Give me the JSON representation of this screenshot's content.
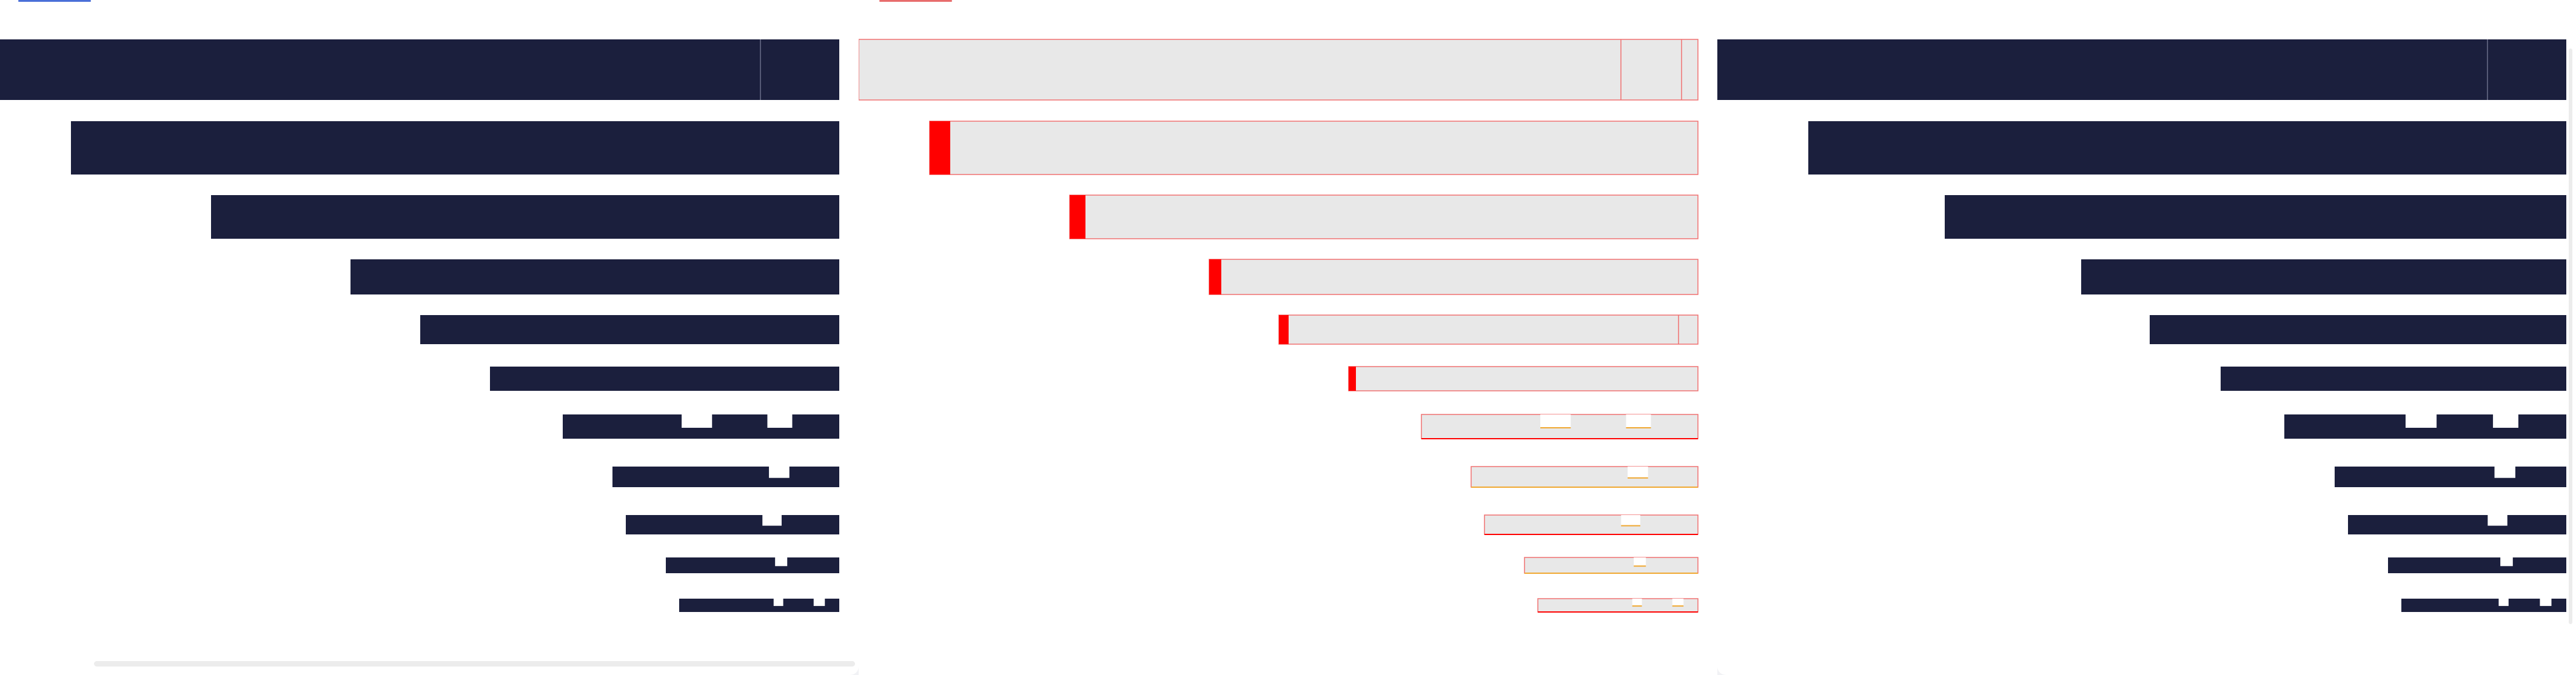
{
  "colors": {
    "bar_dark": "#1b1f3d",
    "bar_light": "#e8e8e8",
    "accent_red": "#ff0000",
    "accent_orange": "#f0a830",
    "tab_blue": "#4a6fd8",
    "tab_red": "#e86c6c"
  },
  "panels": [
    {
      "name": "left",
      "style": "dark",
      "tab_color": "#4a6fd8"
    },
    {
      "name": "middle",
      "style": "highlight",
      "tab_color": "#e86c6c"
    },
    {
      "name": "right",
      "style": "dark",
      "tab_color": ""
    }
  ],
  "icons": {
    "scrollbar": "scrollbar-icon"
  }
}
